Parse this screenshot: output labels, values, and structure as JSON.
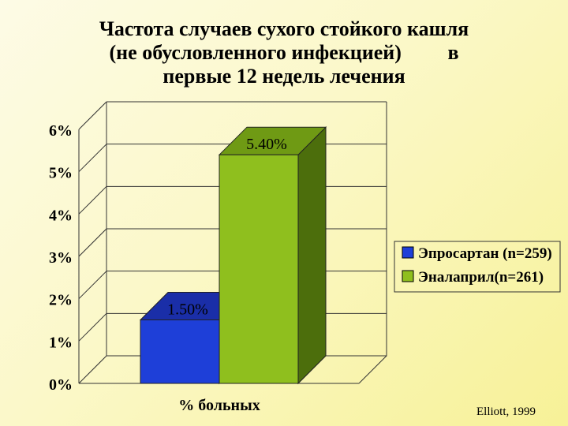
{
  "slide": {
    "title_lines": [
      "Частота случаев сухого стойкого кашля",
      "(не обусловленного инфекцией)         в",
      "первые 12 недель лечения"
    ],
    "source": "Elliott, 1999"
  },
  "chart_data": {
    "type": "bar",
    "style": "3d",
    "title": "Частота случаев сухого стойкого кашля (не обусловленного инфекцией) в первые 12 недель лечения",
    "categories": [
      "% больных"
    ],
    "xlabel": "% больных",
    "ylabel": "",
    "ylim": [
      0,
      6
    ],
    "yticks": [
      0,
      1,
      2,
      3,
      4,
      5,
      6
    ],
    "ytick_labels": [
      "0%",
      "1%",
      "2%",
      "3%",
      "4%",
      "5%",
      "6%"
    ],
    "grid": true,
    "legend_position": "right",
    "series": [
      {
        "name": "Эпросартан (n=259)",
        "values": [
          1.5
        ],
        "label": "1.50%",
        "color": "#1e3fd8",
        "dark": "#0b1d7a",
        "top": "#1a2ea8"
      },
      {
        "name": "Эналаприл(n=261)",
        "values": [
          5.4
        ],
        "label": "5.40%",
        "color": "#8fbf1e",
        "dark": "#4c6e0c",
        "top": "#6f9a14"
      }
    ]
  }
}
